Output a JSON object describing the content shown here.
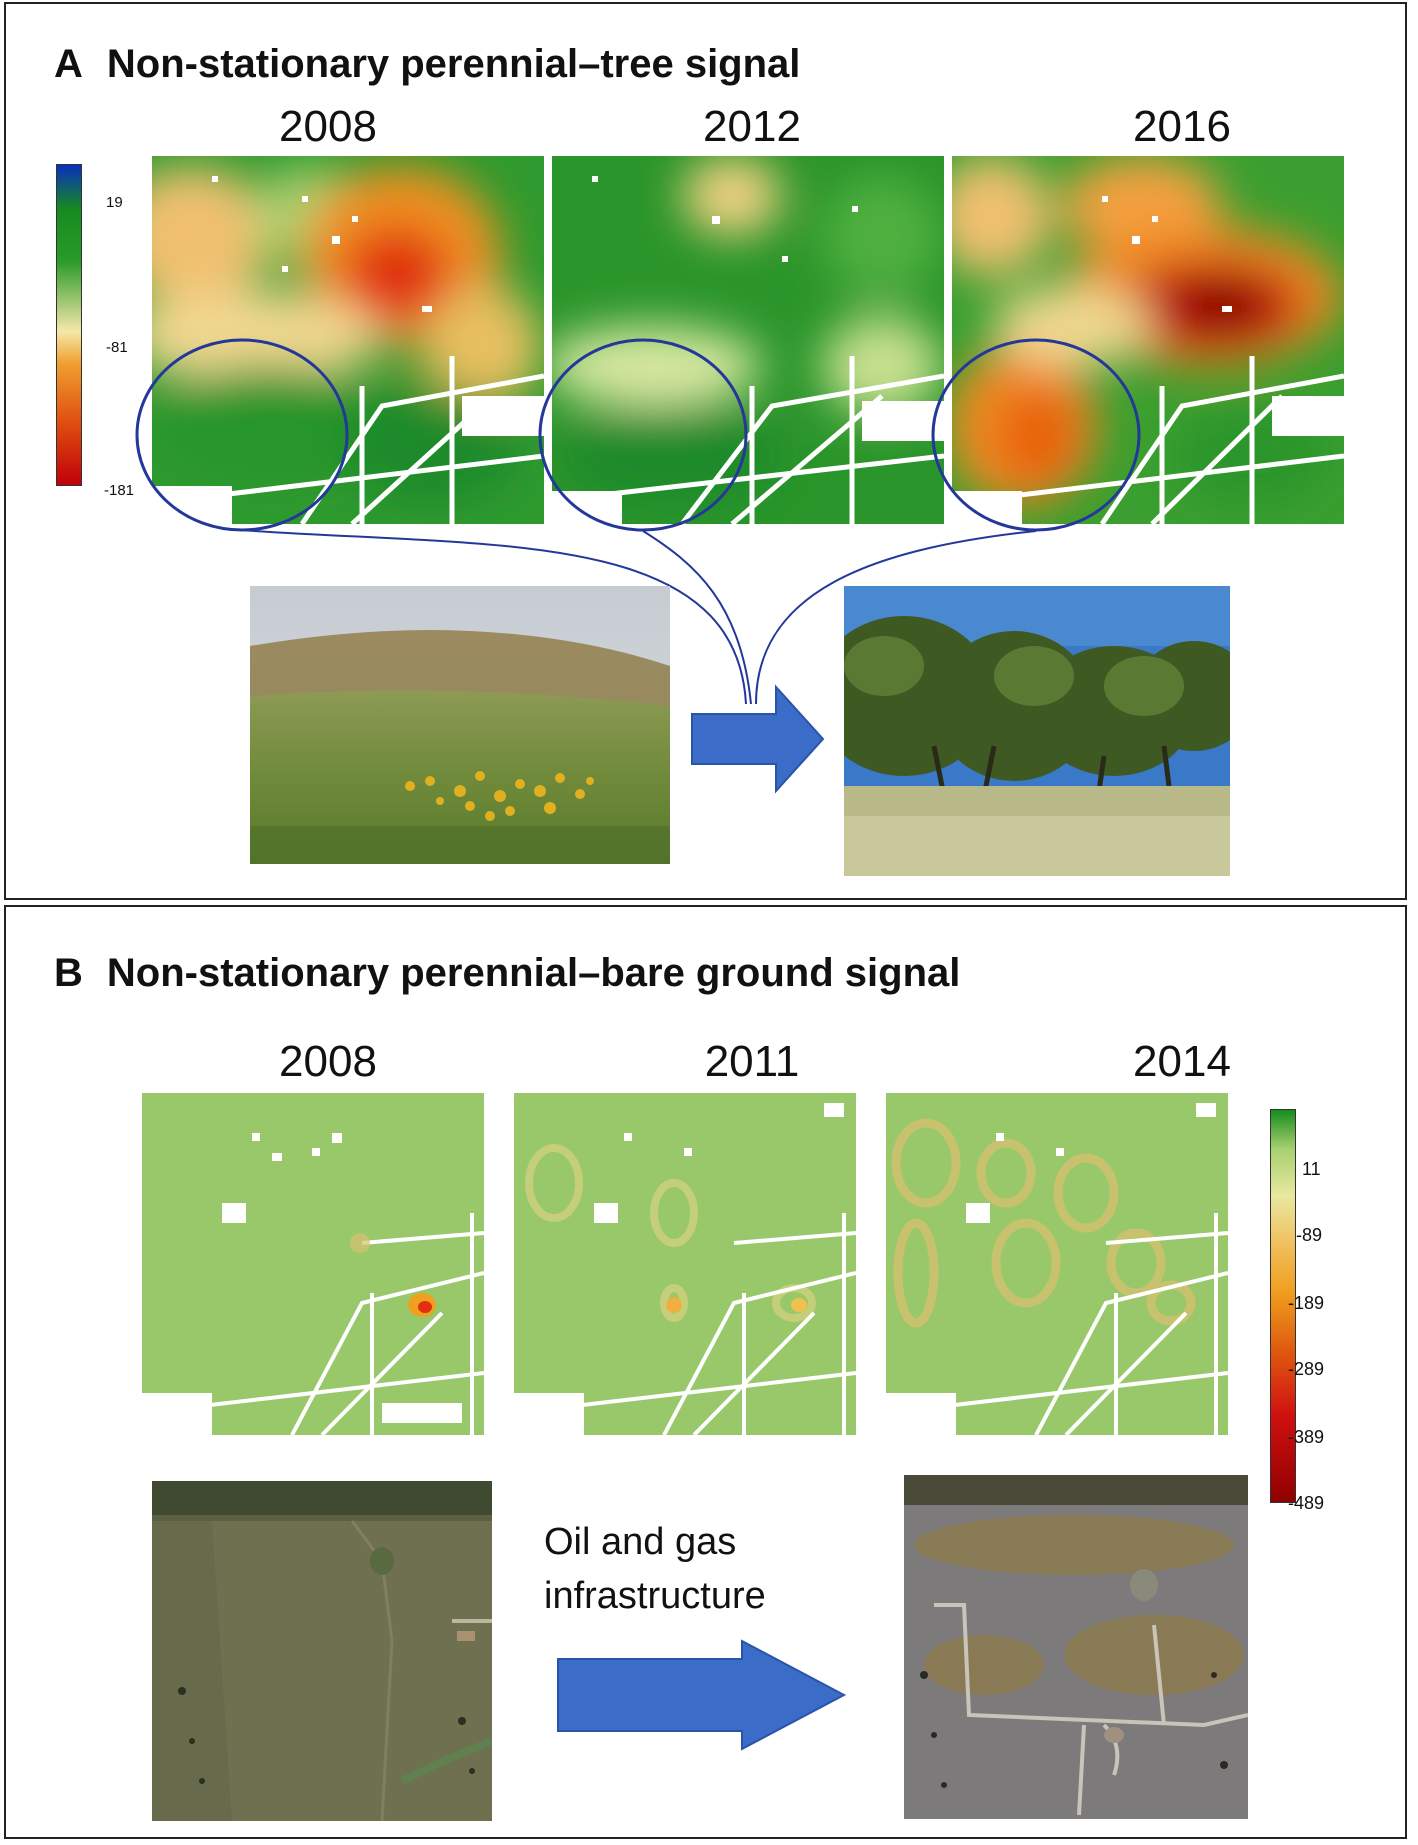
{
  "panel_a": {
    "letter": "A",
    "title": "Non-stationary perennial–tree signal",
    "years": [
      "2008",
      "2012",
      "2016"
    ],
    "colorbar": {
      "ticks": [
        "19",
        "-81",
        "-181"
      ],
      "colors": [
        "#0a2fbf",
        "#168c1e",
        "#f4e8a8",
        "#f08a1a",
        "#c0000a"
      ]
    },
    "photos": [
      "grassland-photo",
      "tree-photo"
    ]
  },
  "panel_b": {
    "letter": "B",
    "title": "Non-stationary perennial–bare ground signal",
    "years": [
      "2008",
      "2011",
      "2014"
    ],
    "colorbar": {
      "ticks": [
        "11",
        "-89",
        "-189",
        "-289",
        "-389",
        "-489"
      ],
      "colors": [
        "#168c1e",
        "#e8e8a0",
        "#f0a020",
        "#d01010",
        "#900000"
      ]
    },
    "caption_line1": "Oil and gas",
    "caption_line2": "infrastructure",
    "photos": [
      "aerial-photo-before",
      "aerial-photo-after"
    ]
  },
  "arrow_color": "#3a6cc8",
  "circle_color": "#24389a"
}
